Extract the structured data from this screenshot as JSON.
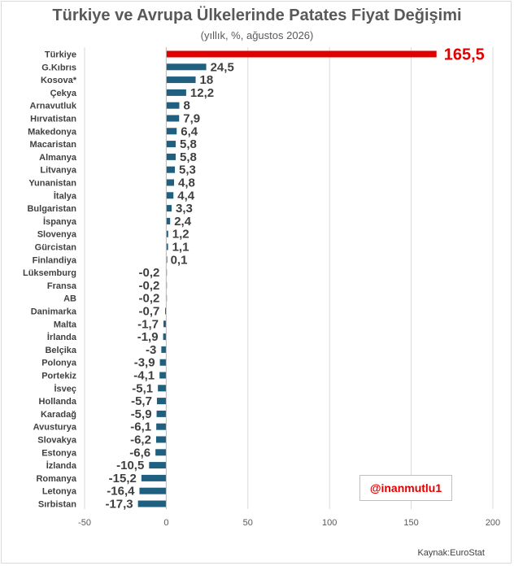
{
  "chart_data": {
    "type": "bar",
    "orientation": "horizontal",
    "title": "Türkiye ve Avrupa Ülkelerinde Patates Fiyat Değişimi",
    "subtitle": "(yıllık, %, ağustos 2026)",
    "source": "Kaynak:EuroStat",
    "watermark": "@inanmutlu1",
    "xlim": [
      -50,
      200
    ],
    "xticks": [
      -50,
      0,
      50,
      100,
      150,
      200
    ],
    "grid": true,
    "bar_color": "#1f5f7f",
    "highlight_color": "#e00000",
    "categories": [
      "Türkiye",
      "G.Kıbrıs",
      "Kosova*",
      "Çekya",
      "Arnavutluk",
      "Hırvatistan",
      "Makedonya",
      "Macaristan",
      "Almanya",
      "Litvanya",
      "Yunanistan",
      "İtalya",
      "Bulgaristan",
      "İspanya",
      "Slovenya",
      "Gürcistan",
      "Finlandiya",
      "Lüksemburg",
      "Fransa",
      "AB",
      "Danimarka",
      "Malta",
      "İrlanda",
      "Belçika",
      "Polonya",
      "Portekiz",
      "İsveç",
      "Hollanda",
      "Karadağ",
      "Avusturya",
      "Slovakya",
      "Estonya",
      "İzlanda",
      "Romanya",
      "Letonya",
      "Sırbistan"
    ],
    "values": [
      165.5,
      24.5,
      18,
      12.2,
      8,
      7.9,
      6.4,
      5.8,
      5.8,
      5.3,
      4.8,
      4.4,
      3.3,
      2.4,
      1.2,
      1.1,
      0.1,
      -0.2,
      -0.2,
      -0.2,
      -0.7,
      -1.7,
      -1.9,
      -3,
      -3.9,
      -4.1,
      -5.1,
      -5.7,
      -5.9,
      -6.1,
      -6.2,
      -6.6,
      -10.5,
      -15.2,
      -16.4,
      -17.3
    ],
    "labels": [
      "165,5",
      "24,5",
      "18",
      "12,2",
      "8",
      "7,9",
      "6,4",
      "5,8",
      "5,8",
      "5,3",
      "4,8",
      "4,4",
      "3,3",
      "2,4",
      "1,2",
      "1,1",
      "0,1",
      "-0,2",
      "-0,2",
      "-0,2",
      "-0,7",
      "-1,7",
      "-1,9",
      "-3",
      "-3,9",
      "-4,1",
      "-5,1",
      "-5,7",
      "-5,9",
      "-6,1",
      "-6,2",
      "-6,6",
      "-10,5",
      "-15,2",
      "-16,4",
      "-17,3"
    ],
    "highlight_index": 0
  }
}
